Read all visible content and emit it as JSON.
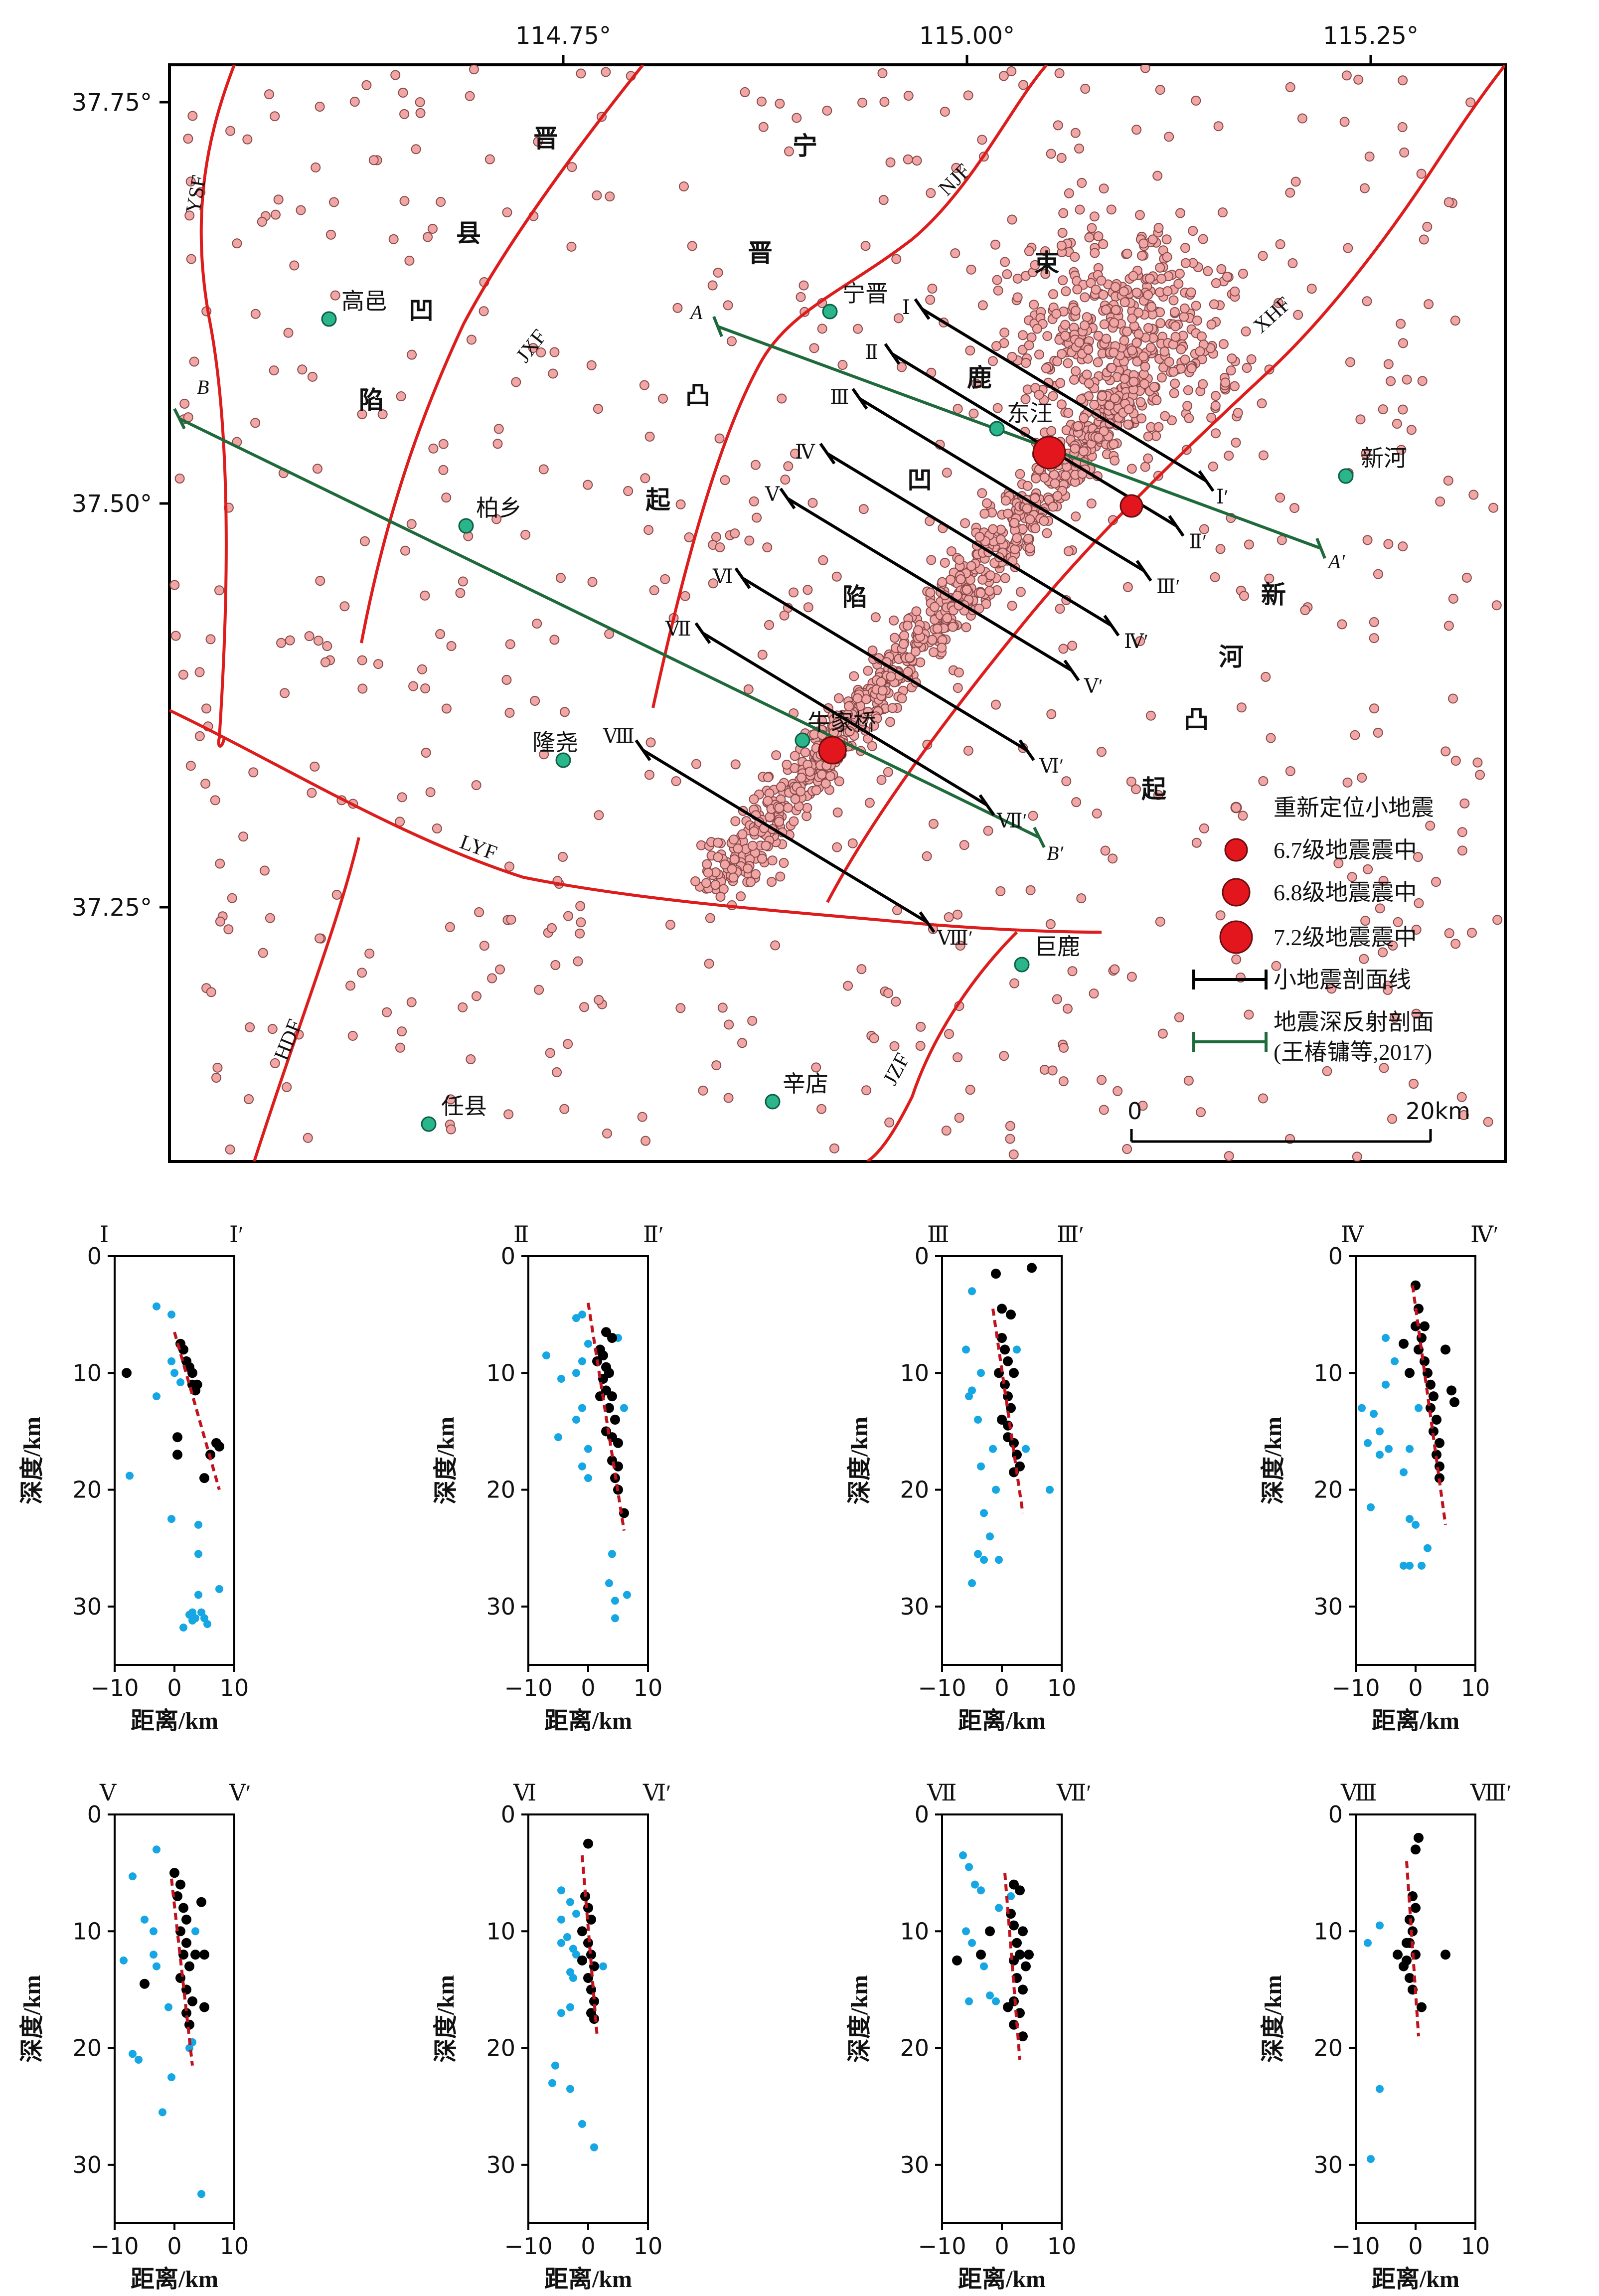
{
  "map": {
    "lon_ticks": [
      "114.75°",
      "115.00°",
      "115.25°"
    ],
    "lat_ticks": [
      "37.75°",
      "37.50°",
      "37.25°"
    ],
    "region_chars": [
      "晋",
      "县",
      "凹",
      "陷",
      "宁",
      "晋",
      "凸",
      "起",
      "束",
      "鹿",
      "凹",
      "陷",
      "新",
      "河",
      "凸",
      "起"
    ],
    "fault_labels": [
      "YSF",
      "JXF",
      "NJF",
      "XHF",
      "LYF",
      "HDF",
      "JZF"
    ],
    "towns": [
      "高邑",
      "宁晋",
      "东汪",
      "柏乡",
      "新河",
      "隆尧",
      "牛家桥",
      "巨鹿",
      "任县",
      "辛店"
    ],
    "micro_profiles": [
      {
        "start": "Ⅰ",
        "end": "Ⅰ′"
      },
      {
        "start": "Ⅱ",
        "end": "Ⅱ′"
      },
      {
        "start": "Ⅲ",
        "end": "Ⅲ′"
      },
      {
        "start": "Ⅳ",
        "end": "Ⅳ′"
      },
      {
        "start": "Ⅴ",
        "end": "Ⅴ′"
      },
      {
        "start": "Ⅵ",
        "end": "Ⅵ′"
      },
      {
        "start": "Ⅶ",
        "end": "Ⅶ′"
      },
      {
        "start": "Ⅷ",
        "end": "Ⅷ′"
      }
    ],
    "reflection_profiles": [
      {
        "start": "A",
        "end": "A′"
      },
      {
        "start": "B",
        "end": "B′"
      }
    ],
    "legend": [
      "重新定位小地震",
      "6.7级地震震中",
      "6.8级地震震中",
      "7.2级地震震中",
      "小地震剖面线",
      "地震深反射剖面",
      "(王椿镛等,2017)"
    ],
    "scale": {
      "min": "0",
      "max": "20km"
    }
  },
  "colors": {
    "fault": "#dd1c1c",
    "micro_event_fill": "#f1a6a6",
    "micro_event_stroke": "#8a4a4a",
    "epicenter": "#e2161c",
    "town": "#2ab58a",
    "reflection_line": "#1e6a3a",
    "profile_line": "#000000",
    "cluster_event": "#000000",
    "other_event": "#15a6e3",
    "trend_line": "#c0131e"
  },
  "sections": {
    "ylabel": "深度/km",
    "xlabel": "距离/km",
    "yticks": [
      "0",
      "10",
      "20",
      "30"
    ],
    "xticks": [
      "−10",
      "0",
      "10"
    ],
    "xlim": [
      -10,
      10
    ],
    "ylim": [
      0,
      35
    ]
  },
  "chart_data": [
    {
      "type": "scatter",
      "left": "Ⅰ",
      "right": "Ⅰ′",
      "cluster": [
        [
          -8,
          10
        ],
        [
          1,
          7.5
        ],
        [
          1.5,
          8
        ],
        [
          2,
          9
        ],
        [
          2.5,
          9.5
        ],
        [
          3,
          10
        ],
        [
          3,
          11
        ],
        [
          3.5,
          11.5
        ],
        [
          0.5,
          15.5
        ],
        [
          0.5,
          17
        ],
        [
          5,
          19
        ],
        [
          6,
          17
        ],
        [
          7,
          16
        ],
        [
          7.5,
          16.3
        ],
        [
          3.8,
          11
        ]
      ],
      "other": [
        [
          -3,
          4.3
        ],
        [
          -0.5,
          5
        ],
        [
          -3,
          12
        ],
        [
          -7.5,
          18.8
        ],
        [
          -0.5,
          9
        ],
        [
          0,
          10
        ],
        [
          1,
          10.8
        ],
        [
          -0.5,
          22.5
        ],
        [
          4,
          23
        ],
        [
          4,
          25.5
        ],
        [
          4,
          29
        ],
        [
          3,
          30.5
        ],
        [
          3.5,
          31
        ],
        [
          4.5,
          30.5
        ],
        [
          5,
          31
        ],
        [
          3,
          31.2
        ],
        [
          5.5,
          31.5
        ],
        [
          7.5,
          28.5
        ],
        [
          1.5,
          31.8
        ],
        [
          2.5,
          30.7
        ]
      ],
      "trend": [
        [
          0,
          6.5
        ],
        [
          7.5,
          20
        ]
      ]
    },
    {
      "type": "scatter",
      "left": "Ⅱ",
      "right": "Ⅱ′",
      "cluster": [
        [
          2,
          8
        ],
        [
          2.5,
          8.5
        ],
        [
          3,
          9.5
        ],
        [
          3.5,
          10
        ],
        [
          2.5,
          10.5
        ],
        [
          3,
          11.5
        ],
        [
          4,
          12
        ],
        [
          2,
          12
        ],
        [
          3.5,
          13
        ],
        [
          4.5,
          14
        ],
        [
          3,
          15
        ],
        [
          4,
          15.5
        ],
        [
          5,
          16
        ],
        [
          4,
          17.5
        ],
        [
          5,
          18
        ],
        [
          4.5,
          19
        ],
        [
          5,
          20
        ],
        [
          6,
          22
        ],
        [
          3,
          6.5
        ],
        [
          4,
          7
        ],
        [
          1.5,
          9
        ]
      ],
      "other": [
        [
          -7,
          8.5
        ],
        [
          -2,
          5.3
        ],
        [
          -1,
          5
        ],
        [
          0,
          7.5
        ],
        [
          -1,
          9
        ],
        [
          -2,
          10
        ],
        [
          -4.5,
          10.5
        ],
        [
          -1,
          13
        ],
        [
          -2,
          14
        ],
        [
          0,
          16.5
        ],
        [
          -1,
          18
        ],
        [
          0,
          19
        ],
        [
          -5,
          15.5
        ],
        [
          4,
          25.5
        ],
        [
          3.5,
          28
        ],
        [
          4.5,
          29.5
        ],
        [
          4.5,
          31
        ],
        [
          6.5,
          29
        ],
        [
          6,
          13
        ],
        [
          5,
          7
        ]
      ],
      "trend": [
        [
          0,
          4
        ],
        [
          6,
          23.5
        ]
      ]
    },
    {
      "type": "scatter",
      "left": "Ⅲ",
      "right": "Ⅲ′",
      "cluster": [
        [
          -1,
          1.5
        ],
        [
          5,
          1
        ],
        [
          0,
          7
        ],
        [
          0.5,
          8
        ],
        [
          1,
          9
        ],
        [
          -0.5,
          10
        ],
        [
          0.5,
          11
        ],
        [
          1,
          12
        ],
        [
          1.5,
          13
        ],
        [
          0,
          14
        ],
        [
          1,
          14.5
        ],
        [
          2,
          16
        ],
        [
          2.5,
          17
        ],
        [
          3,
          18
        ],
        [
          2,
          18.5
        ],
        [
          0,
          4.5
        ],
        [
          1.5,
          5
        ],
        [
          2,
          10
        ],
        [
          1,
          15.5
        ]
      ],
      "other": [
        [
          -5,
          3
        ],
        [
          -6,
          8
        ],
        [
          -3.5,
          10
        ],
        [
          -5,
          11.5
        ],
        [
          -5.5,
          12
        ],
        [
          -4,
          14
        ],
        [
          -1.5,
          16.5
        ],
        [
          -3.5,
          18
        ],
        [
          -1,
          20
        ],
        [
          -3,
          22
        ],
        [
          -2,
          24
        ],
        [
          -4,
          25.5
        ],
        [
          -3,
          26
        ],
        [
          -5,
          28
        ],
        [
          -0.5,
          26
        ],
        [
          4,
          16.5
        ],
        [
          8,
          20
        ],
        [
          2.5,
          8
        ]
      ],
      "trend": [
        [
          -1.5,
          4.5
        ],
        [
          3.5,
          22
        ]
      ]
    },
    {
      "type": "scatter",
      "left": "Ⅳ",
      "right": "Ⅳ′",
      "cluster": [
        [
          0,
          2.5
        ],
        [
          0.5,
          4.5
        ],
        [
          0,
          6
        ],
        [
          1,
          7
        ],
        [
          0.5,
          8
        ],
        [
          1.5,
          9
        ],
        [
          2,
          10
        ],
        [
          2.5,
          11
        ],
        [
          3,
          12
        ],
        [
          2.5,
          13
        ],
        [
          3.5,
          14
        ],
        [
          3,
          15
        ],
        [
          4,
          16
        ],
        [
          3.5,
          17
        ],
        [
          4,
          18
        ],
        [
          4,
          19
        ],
        [
          -2,
          7.5
        ],
        [
          5,
          8
        ],
        [
          6,
          11.5
        ],
        [
          6.5,
          12.5
        ],
        [
          -1,
          10
        ],
        [
          1.5,
          6
        ]
      ],
      "other": [
        [
          0,
          2.5
        ],
        [
          -5,
          7
        ],
        [
          -3.5,
          9
        ],
        [
          -5,
          11
        ],
        [
          -9,
          13
        ],
        [
          -7,
          13.5
        ],
        [
          -6,
          15
        ],
        [
          -8,
          16
        ],
        [
          -4.5,
          16.5
        ],
        [
          -6,
          17
        ],
        [
          -2,
          18.5
        ],
        [
          -1,
          16.5
        ],
        [
          -7.5,
          21.5
        ],
        [
          -1,
          22.5
        ],
        [
          0,
          23
        ],
        [
          -2,
          26.5
        ],
        [
          -1,
          26.5
        ],
        [
          2,
          25
        ],
        [
          1,
          26.5
        ],
        [
          0.5,
          13
        ]
      ],
      "trend": [
        [
          -0.5,
          2.5
        ],
        [
          5,
          23
        ]
      ]
    },
    {
      "type": "scatter",
      "left": "Ⅴ",
      "right": "Ⅴ′",
      "cluster": [
        [
          0,
          5
        ],
        [
          1,
          6
        ],
        [
          0.5,
          7
        ],
        [
          1.5,
          8
        ],
        [
          2,
          9
        ],
        [
          1,
          10
        ],
        [
          2,
          11
        ],
        [
          1.5,
          12
        ],
        [
          2.5,
          13
        ],
        [
          1,
          14
        ],
        [
          2,
          15
        ],
        [
          3,
          16
        ],
        [
          2,
          17
        ],
        [
          2.5,
          18
        ],
        [
          4.5,
          7.5
        ],
        [
          5,
          12
        ],
        [
          5,
          16.5
        ],
        [
          3.5,
          12
        ],
        [
          -5,
          14.5
        ]
      ],
      "other": [
        [
          -3,
          3
        ],
        [
          -7,
          5.3
        ],
        [
          -5,
          9
        ],
        [
          -3.5,
          10
        ],
        [
          -8.5,
          12.5
        ],
        [
          -3.5,
          12
        ],
        [
          -3,
          13
        ],
        [
          -7,
          20.5
        ],
        [
          -6,
          21
        ],
        [
          -1,
          16.5
        ],
        [
          -0.5,
          22.5
        ],
        [
          -2,
          25.5
        ],
        [
          3,
          19.5
        ],
        [
          4.5,
          32.5
        ],
        [
          3.5,
          10
        ],
        [
          2.5,
          20
        ]
      ],
      "trend": [
        [
          -0.5,
          5.5
        ],
        [
          3,
          21.5
        ]
      ]
    },
    {
      "type": "scatter",
      "left": "Ⅵ",
      "right": "Ⅵ′",
      "cluster": [
        [
          0,
          2.5
        ],
        [
          -0.5,
          7
        ],
        [
          0,
          8
        ],
        [
          0.5,
          9
        ],
        [
          -1,
          10
        ],
        [
          0,
          11
        ],
        [
          0.5,
          12
        ],
        [
          1,
          13
        ],
        [
          0,
          14
        ],
        [
          0.5,
          15
        ],
        [
          1,
          16
        ],
        [
          0.5,
          17
        ],
        [
          -1,
          12.5
        ],
        [
          1,
          17.5
        ]
      ],
      "other": [
        [
          -4.5,
          6.5
        ],
        [
          -3,
          7.5
        ],
        [
          -2,
          8.5
        ],
        [
          -4.5,
          9
        ],
        [
          -3.5,
          10.5
        ],
        [
          -4.5,
          11
        ],
        [
          -2.5,
          11.5
        ],
        [
          -2,
          12
        ],
        [
          -3,
          13.5
        ],
        [
          -2.5,
          14
        ],
        [
          -3,
          16.5
        ],
        [
          -4.5,
          17
        ],
        [
          -5.5,
          21.5
        ],
        [
          -6,
          23
        ],
        [
          -3,
          23.5
        ],
        [
          -1,
          26.5
        ],
        [
          1,
          28.5
        ],
        [
          2.5,
          13
        ]
      ],
      "trend": [
        [
          -1,
          3.5
        ],
        [
          1.5,
          19
        ]
      ]
    },
    {
      "type": "scatter",
      "left": "Ⅶ",
      "right": "Ⅶ′",
      "cluster": [
        [
          2,
          6
        ],
        [
          3,
          6.5
        ],
        [
          1.5,
          8.5
        ],
        [
          2,
          9.5
        ],
        [
          3.5,
          10
        ],
        [
          2.5,
          11
        ],
        [
          3,
          12
        ],
        [
          2,
          12.5
        ],
        [
          4,
          13
        ],
        [
          2.5,
          14
        ],
        [
          3.5,
          15
        ],
        [
          2,
          16
        ],
        [
          3,
          17
        ],
        [
          2,
          18
        ],
        [
          3.5,
          19
        ],
        [
          -7.5,
          12.5
        ],
        [
          -3.5,
          12
        ],
        [
          -2,
          10
        ],
        [
          1,
          16.5
        ],
        [
          4.5,
          12
        ]
      ],
      "other": [
        [
          -6.5,
          3.5
        ],
        [
          -5.5,
          4.5
        ],
        [
          -4.5,
          6
        ],
        [
          -3.5,
          6.5
        ],
        [
          -6,
          10
        ],
        [
          -5,
          11
        ],
        [
          -3,
          13
        ],
        [
          -2,
          15.5
        ],
        [
          -1,
          16
        ],
        [
          -5.5,
          16
        ],
        [
          -0.5,
          8
        ],
        [
          1.5,
          7
        ],
        [
          4,
          13
        ]
      ],
      "trend": [
        [
          0.5,
          5
        ],
        [
          3,
          21
        ]
      ]
    },
    {
      "type": "scatter",
      "left": "Ⅷ",
      "right": "Ⅷ′",
      "cluster": [
        [
          0.5,
          2
        ],
        [
          0,
          3
        ],
        [
          -0.5,
          7
        ],
        [
          0,
          8
        ],
        [
          -1,
          9
        ],
        [
          -0.5,
          10
        ],
        [
          -1,
          11
        ],
        [
          0,
          12
        ],
        [
          -1.5,
          12.5
        ],
        [
          -2,
          13
        ],
        [
          -1,
          14
        ],
        [
          -0.5,
          15
        ],
        [
          1,
          16.5
        ],
        [
          -3,
          12
        ],
        [
          5,
          12
        ],
        [
          -1.5,
          11
        ]
      ],
      "other": [
        [
          -6,
          9.5
        ],
        [
          -8,
          11
        ],
        [
          -6,
          23.5
        ],
        [
          -7.5,
          29.5
        ]
      ],
      "trend": [
        [
          -1.5,
          4
        ],
        [
          0.5,
          19
        ]
      ]
    }
  ]
}
